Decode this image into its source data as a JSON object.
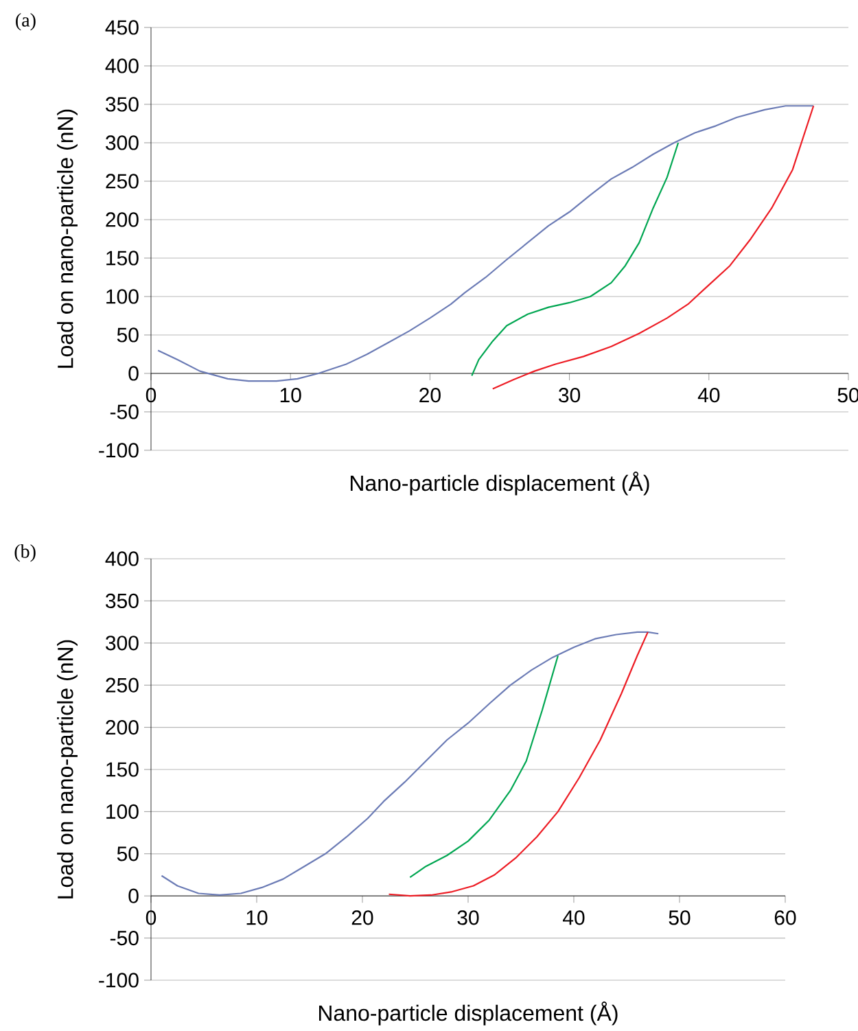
{
  "chart_data": [
    {
      "type": "line",
      "title": "(a)",
      "xlabel": "Nano-particle displacement (Å)",
      "ylabel": "Load on nano-particle (nN)",
      "xlim": [
        0,
        50
      ],
      "ylim": [
        -100,
        450
      ],
      "xticks": [
        0,
        10,
        20,
        30,
        40,
        50
      ],
      "yticks": [
        -100,
        -50,
        0,
        50,
        100,
        150,
        200,
        250,
        300,
        350,
        400,
        450
      ],
      "grid": "y",
      "line_style": "solid",
      "series": [
        {
          "color": "#6b7bb5",
          "x": [
            0.5,
            2,
            3.5,
            5.5,
            7,
            9,
            10.5,
            12,
            14,
            15.5,
            17,
            18.5,
            20,
            21.5,
            22.5,
            24,
            25.5,
            27,
            28.5,
            30,
            31.5,
            33,
            34.5,
            36,
            37.5,
            39,
            40.5,
            42,
            44,
            45.5,
            47.5
          ],
          "values": [
            30,
            17,
            3,
            -7,
            -10,
            -10,
            -7,
            0,
            12,
            25,
            40,
            55,
            72,
            90,
            105,
            125,
            148,
            170,
            192,
            210,
            232,
            253,
            268,
            285,
            300,
            313,
            322,
            333,
            343,
            348,
            348
          ]
        },
        {
          "color": "#00a651",
          "x": [
            23,
            23.5,
            24.5,
            25.5,
            27,
            28.5,
            30,
            31.5,
            33,
            34,
            35,
            36,
            37,
            37.8
          ],
          "values": [
            -3,
            18,
            42,
            62,
            77,
            86,
            92,
            100,
            118,
            140,
            170,
            215,
            255,
            300
          ]
        },
        {
          "color": "#ed1c24",
          "x": [
            24.5,
            26,
            27.5,
            29,
            31,
            33,
            35,
            37,
            38.5,
            40,
            41.5,
            43,
            44.5,
            46,
            47.5
          ],
          "values": [
            -20,
            -8,
            3,
            12,
            22,
            35,
            52,
            72,
            90,
            115,
            140,
            175,
            215,
            265,
            348
          ]
        }
      ]
    },
    {
      "type": "line",
      "title": "(b)",
      "xlabel": "Nano-particle displacement (Å)",
      "ylabel": "Load on nano-particle (nN)",
      "xlim": [
        0,
        60
      ],
      "ylim": [
        -100,
        400
      ],
      "xticks": [
        0,
        10,
        20,
        30,
        40,
        50,
        60
      ],
      "yticks": [
        -100,
        -50,
        0,
        50,
        100,
        150,
        200,
        250,
        300,
        350,
        400
      ],
      "grid": "y",
      "line_style": "solid",
      "series": [
        {
          "color": "#6b7bb5",
          "x": [
            1,
            2.5,
            4.5,
            6.5,
            8.5,
            10.5,
            12.5,
            14.5,
            16.5,
            18.5,
            20.5,
            22,
            24,
            26,
            28,
            30,
            32,
            34,
            36,
            38,
            40,
            42,
            44,
            46,
            47,
            48
          ],
          "values": [
            24,
            12,
            3,
            1,
            3,
            10,
            20,
            35,
            50,
            70,
            92,
            112,
            135,
            160,
            185,
            205,
            228,
            250,
            268,
            283,
            295,
            305,
            310,
            313,
            313,
            311
          ]
        },
        {
          "color": "#00a651",
          "x": [
            24.5,
            26,
            28,
            30,
            32,
            34,
            35.5,
            37,
            38.5
          ],
          "values": [
            22,
            35,
            48,
            65,
            90,
            125,
            160,
            220,
            285
          ]
        },
        {
          "color": "#ed1c24",
          "x": [
            22.5,
            24.5,
            26.5,
            28.5,
            30.5,
            32.5,
            34.5,
            36.5,
            38.5,
            40.5,
            42.5,
            44.5,
            46,
            47
          ],
          "values": [
            2,
            0,
            1,
            5,
            12,
            25,
            45,
            70,
            100,
            140,
            185,
            240,
            285,
            313
          ]
        }
      ]
    }
  ]
}
